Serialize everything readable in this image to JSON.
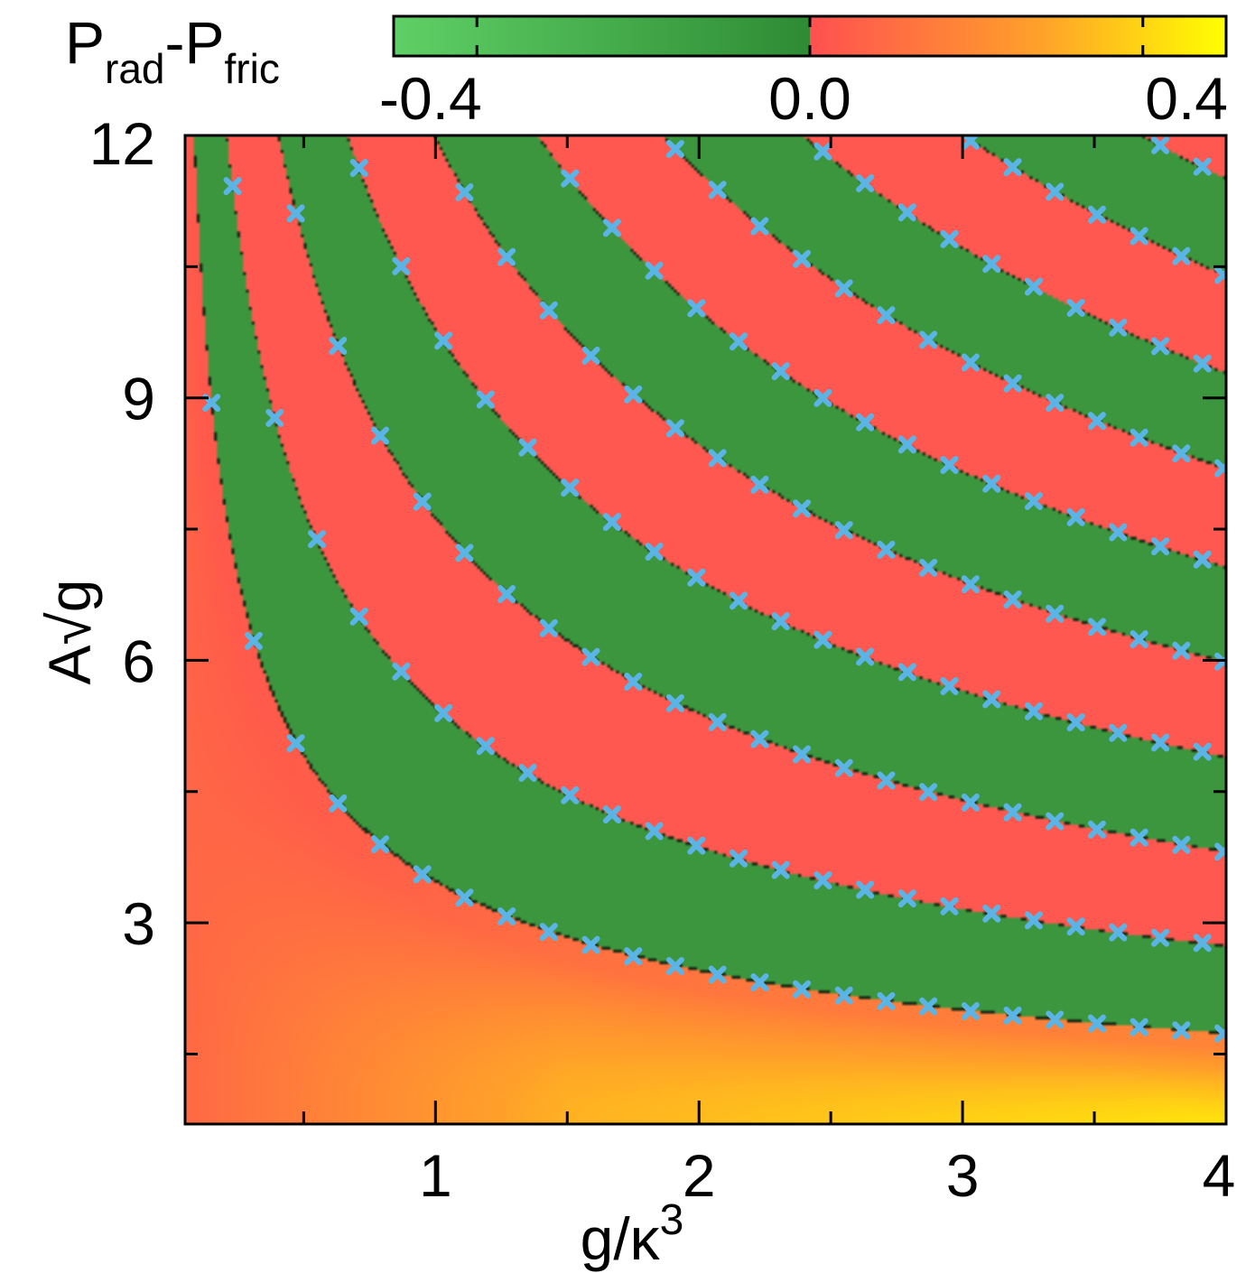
{
  "chart_data": {
    "type": "heatmap",
    "colorbar": {
      "title_main": "P",
      "title_sub1": "rad",
      "title_dash": "-P",
      "title_sub2": "fric",
      "range": [
        -0.5,
        0.5
      ],
      "ticks": [
        -0.4,
        0.0,
        0.4
      ],
      "tick_labels": [
        "-0.4",
        "0.0",
        "0.4"
      ],
      "colors_negative": [
        "#5fd065",
        "#2e8b34"
      ],
      "colors_positive": [
        "#ff5050",
        "#ff9830",
        "#ffff00"
      ]
    },
    "x_axis": {
      "label_main": "g/κ",
      "label_sup": "3",
      "range": [
        0.05,
        4.0
      ],
      "ticks": [
        1,
        2,
        3,
        4
      ],
      "tick_labels": [
        "1",
        "2",
        "3",
        "4"
      ],
      "minor_ticks": [
        0.5,
        1.5,
        2.5,
        3.5
      ]
    },
    "y_axis": {
      "label_main": "A",
      "label_root": "√g",
      "range": [
        0.7,
        12.0
      ],
      "ticks": [
        3,
        6,
        9,
        12
      ],
      "tick_labels": [
        "3",
        "6",
        "9",
        "12"
      ],
      "minor_ticks": [
        1.5,
        4.5,
        7.5,
        10.5
      ]
    },
    "band_boundaries_x_times_y2": [
      12.0,
      30.0,
      58.0,
      96.0,
      143.0,
      200.0,
      268.0,
      345.0,
      432.0,
      530.0
    ],
    "negative_band_pairs": [
      [
        12.0,
        30.0
      ],
      [
        58.0,
        96.0
      ],
      [
        143.0,
        200.0
      ],
      [
        268.0,
        345.0
      ],
      [
        432.0,
        530.0
      ]
    ],
    "markers": {
      "color": "#5ab4e6",
      "shape": "x",
      "x_values": [
        0.15,
        0.23,
        0.31,
        0.39,
        0.47,
        0.55,
        0.63,
        0.71,
        0.79,
        0.87,
        0.95,
        1.03,
        1.11,
        1.19,
        1.27,
        1.35,
        1.43,
        1.51,
        1.59,
        1.67,
        1.75,
        1.83,
        1.91,
        1.99,
        2.07,
        2.15,
        2.23,
        2.31,
        2.39,
        2.47,
        2.55,
        2.63,
        2.71,
        2.79,
        2.87,
        2.95,
        3.03,
        3.11,
        3.19,
        3.27,
        3.35,
        3.43,
        3.51,
        3.59,
        3.67,
        3.75,
        3.83,
        3.91,
        3.99
      ]
    }
  }
}
